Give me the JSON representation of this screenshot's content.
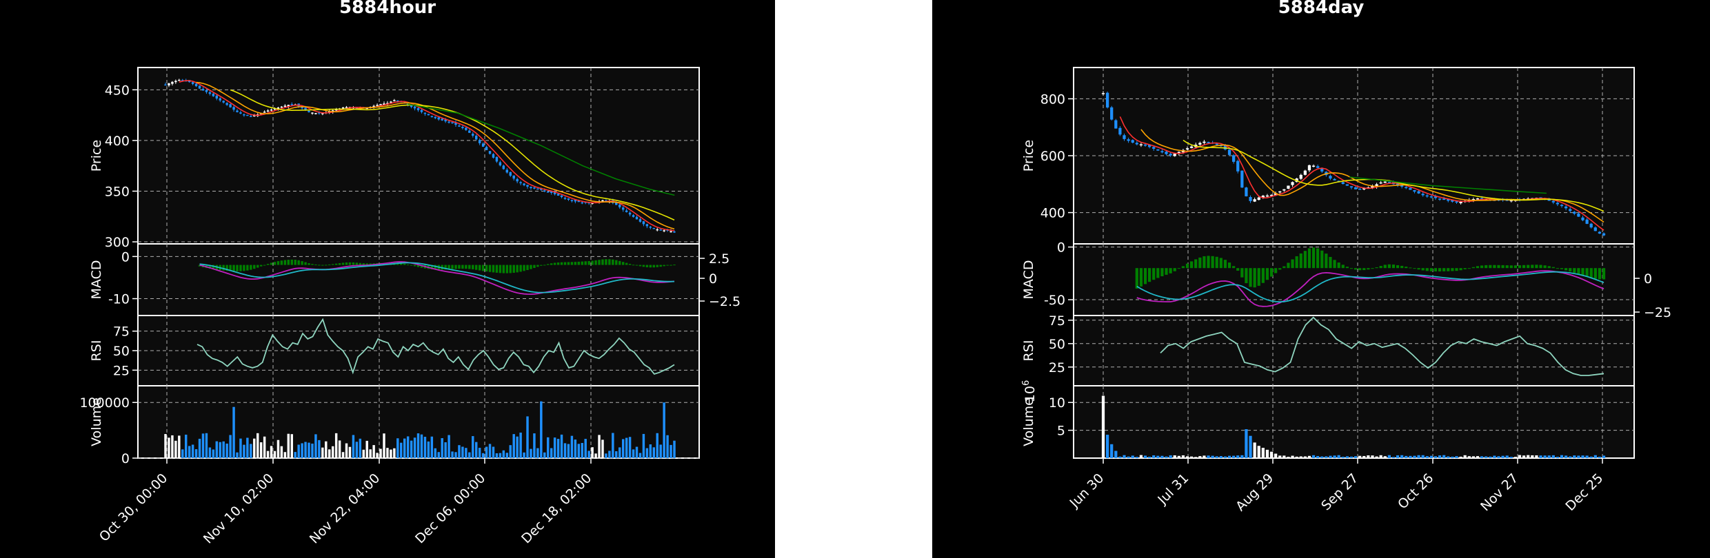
{
  "figures": [
    {
      "title": "5884hour",
      "panel_labels": {
        "price": "Price",
        "macd": "MACD",
        "rsi": "RSI",
        "volume": "Volume"
      },
      "colors": {
        "up": "#ffffff",
        "down": "#1e90ff",
        "ma_fast": "#ff3030",
        "ma_mid": "#ffa500",
        "ma_slow_y": "#e6e600",
        "ma_long": "#008000",
        "macd_line": "#c020c0",
        "signal_line": "#20b8c8",
        "hist": "#008000",
        "rsi": "#8fd6c0",
        "grid": "#b0b0b0"
      }
    },
    {
      "title": "5884day",
      "panel_labels": {
        "price": "Price",
        "macd": "MACD",
        "rsi": "RSI",
        "volume": "Volume",
        "volume_exp": "1e6"
      },
      "colors": {
        "up": "#ffffff",
        "down": "#1e90ff",
        "ma_fast": "#ff3030",
        "ma_mid": "#ffa500",
        "ma_slow_y": "#e6e600",
        "ma_long": "#008000",
        "macd_line": "#c020c0",
        "signal_line": "#20b8c8",
        "hist": "#008000",
        "rsi": "#8fd6c0",
        "grid": "#b0b0b0"
      }
    }
  ],
  "chart_data": [
    {
      "type": "candlestick",
      "title": "5884hour",
      "x_tick_labels": [
        "Oct 30, 00:00",
        "Nov 10, 02:00",
        "Nov 22, 04:00",
        "Dec 06, 00:00",
        "Dec 18, 02:00"
      ],
      "price": {
        "ylabel": "Price",
        "ylim": [
          298,
          472
        ],
        "yticks": [
          300,
          350,
          400,
          450
        ],
        "close_approx": [
          455,
          458,
          460,
          459,
          455,
          450,
          447,
          442,
          438,
          433,
          428,
          425,
          424,
          426,
          429,
          431,
          433,
          435,
          436,
          432,
          428,
          427,
          427,
          429,
          431,
          433,
          433,
          432,
          432,
          434,
          436,
          437,
          440,
          438,
          434,
          431,
          427,
          424,
          421,
          419,
          417,
          414,
          410,
          404,
          396,
          389,
          381,
          373,
          366,
          360,
          356,
          353,
          352,
          350,
          348,
          345,
          342,
          340,
          339,
          338,
          339,
          341,
          340,
          336,
          331,
          326,
          321,
          316,
          313,
          312,
          311,
          310
        ],
        "ma_long": {
          "name": "",
          "points": [
            [
              0.58,
              436
            ],
            [
              0.7,
              427
            ],
            [
              0.8,
              412
            ],
            [
              0.9,
              395
            ],
            [
              1.0,
              375
            ],
            [
              1.08,
              362
            ],
            [
              1.16,
              352
            ],
            [
              1.22,
              346
            ]
          ]
        }
      },
      "macd": {
        "ylabel": "MACD",
        "yticks_left": [
          0,
          -10
        ],
        "yticks_right": [
          2.5,
          0.0,
          -2.5
        ],
        "ylim": [
          -14,
          3
        ]
      },
      "rsi": {
        "ylabel": "RSI",
        "yticks": [
          25,
          50,
          75
        ],
        "ylim": [
          5,
          95
        ],
        "values": [
          58,
          55,
          45,
          40,
          38,
          35,
          30,
          36,
          42,
          33,
          30,
          28,
          30,
          35,
          55,
          70,
          62,
          55,
          52,
          60,
          58,
          72,
          65,
          68,
          80,
          90,
          70,
          62,
          55,
          50,
          40,
          22,
          42,
          48,
          55,
          52,
          65,
          62,
          60,
          48,
          42,
          55,
          50,
          58,
          55,
          60,
          52,
          48,
          45,
          52,
          40,
          35,
          42,
          32,
          26,
          38,
          45,
          50,
          42,
          32,
          26,
          28,
          40,
          48,
          42,
          32,
          30,
          22,
          30,
          42,
          50,
          48,
          60,
          40,
          28,
          30,
          40,
          50,
          45,
          42,
          40,
          45,
          52,
          58,
          66,
          60,
          52,
          48,
          40,
          32,
          28,
          20,
          22,
          25,
          28,
          32
        ]
      },
      "volume": {
        "ylabel": "Volume",
        "yticks": [
          0,
          100000
        ],
        "ylim": [
          0,
          130000
        ]
      }
    },
    {
      "type": "candlestick",
      "title": "5884day",
      "x_tick_labels": [
        "Jun 30",
        "Jul 31",
        "Aug 29",
        "Sep 27",
        "Oct 26",
        "Nov 27",
        "Dec 25"
      ],
      "price": {
        "ylabel": "Price",
        "ylim": [
          290,
          910
        ],
        "yticks": [
          400,
          600,
          800
        ],
        "close_approx": [
          820,
          740,
          690,
          660,
          650,
          640,
          640,
          630,
          620,
          610,
          600,
          610,
          620,
          630,
          640,
          650,
          645,
          640,
          630,
          600,
          560,
          470,
          440,
          450,
          460,
          460,
          470,
          480,
          500,
          520,
          540,
          570,
          560,
          540,
          520,
          510,
          500,
          490,
          480,
          485,
          490,
          500,
          510,
          505,
          495,
          490,
          480,
          470,
          460,
          455,
          450,
          445,
          440,
          435,
          440,
          445,
          450,
          448,
          446,
          445,
          444,
          443,
          445,
          448,
          450,
          452,
          448,
          440,
          430,
          420,
          405,
          390,
          370,
          350,
          330,
          320
        ],
        "ma_long": {
          "name": "",
          "points": [
            [
              0.6,
              525
            ],
            [
              0.7,
              510
            ],
            [
              0.8,
              495
            ],
            [
              0.9,
              485
            ],
            [
              1.0,
              475
            ],
            [
              1.08,
              468
            ]
          ]
        }
      },
      "macd": {
        "ylabel": "MACD",
        "yticks_left": [
          0,
          -50
        ],
        "yticks_right": [
          0,
          -25
        ],
        "ylim": [
          -65,
          3
        ]
      },
      "rsi": {
        "ylabel": "RSI",
        "yticks": [
          25,
          50,
          75
        ],
        "ylim": [
          5,
          80
        ],
        "values": [
          40,
          48,
          50,
          45,
          52,
          55,
          58,
          60,
          62,
          55,
          50,
          30,
          28,
          26,
          22,
          20,
          24,
          30,
          55,
          70,
          78,
          70,
          65,
          55,
          50,
          45,
          52,
          48,
          50,
          46,
          48,
          50,
          45,
          38,
          30,
          24,
          30,
          40,
          48,
          52,
          50,
          55,
          52,
          50,
          48,
          52,
          55,
          58,
          50,
          48,
          45,
          40,
          30,
          22,
          18,
          16,
          16,
          17,
          18
        ]
      },
      "volume": {
        "ylabel": "Volume",
        "exponent": "10^6",
        "yticks": [
          5,
          10
        ],
        "ylim": [
          0,
          13
        ]
      }
    }
  ]
}
